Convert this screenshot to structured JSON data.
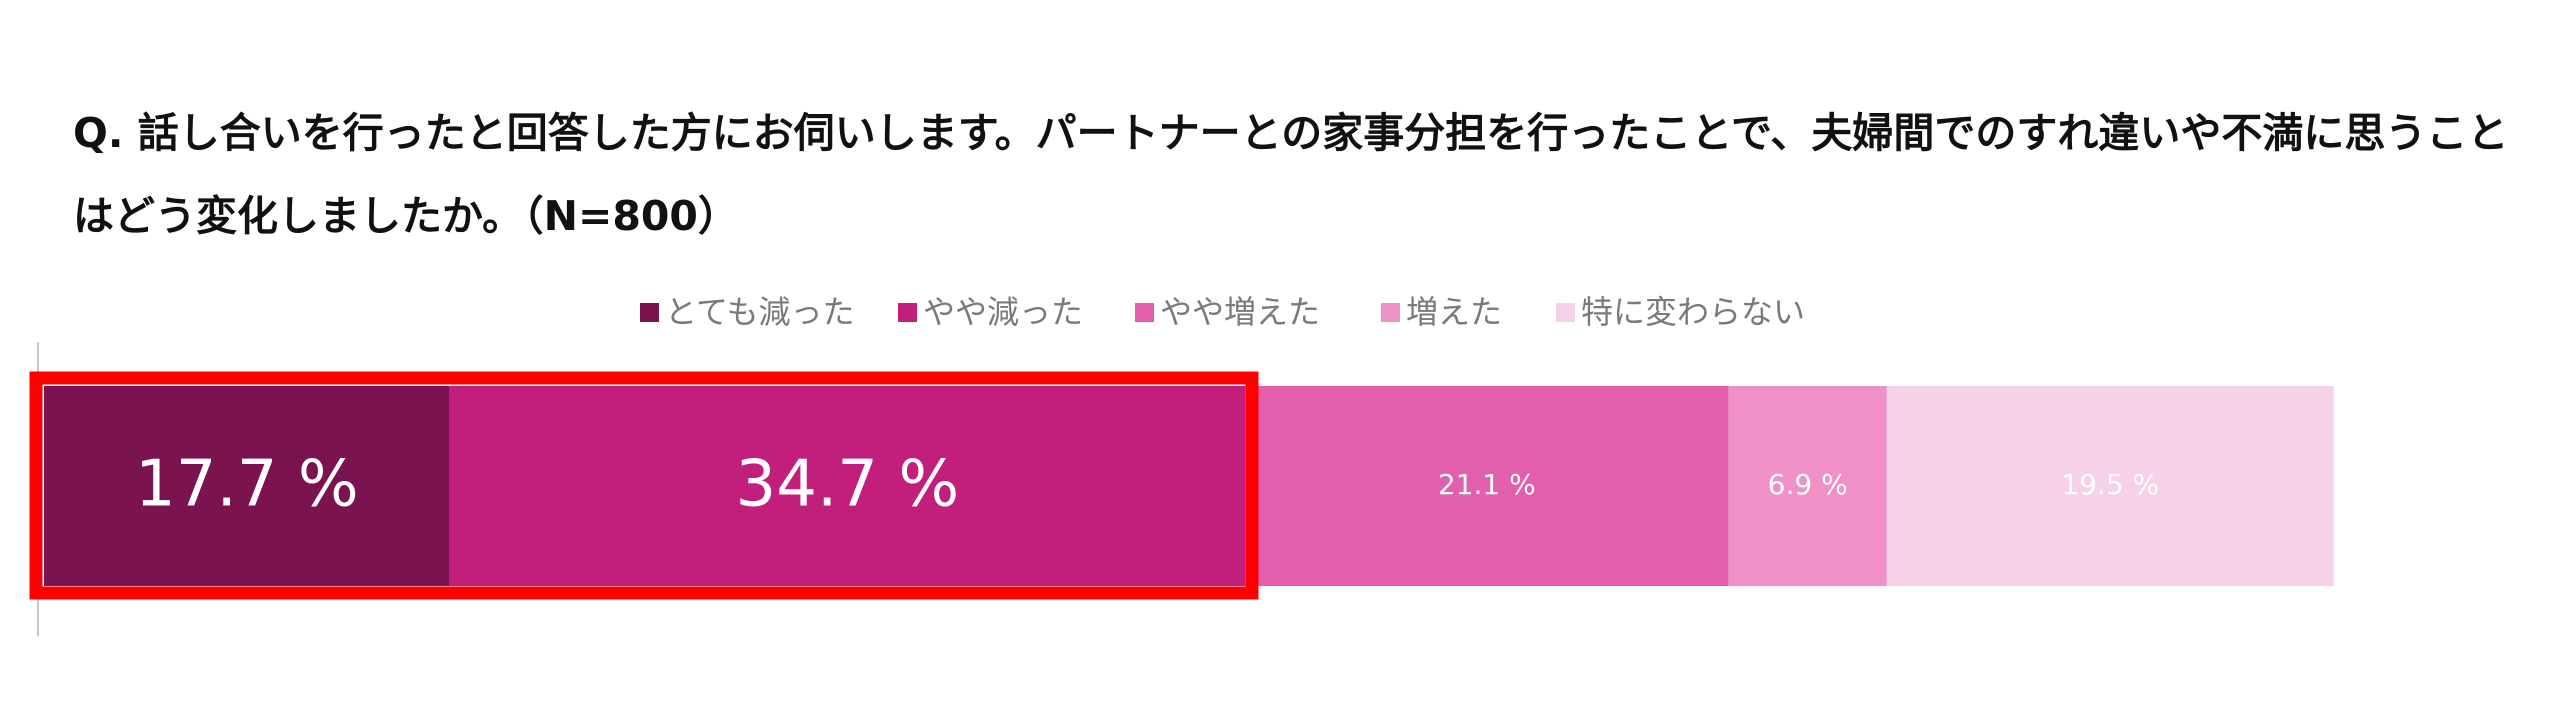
{
  "chart_data": {
    "type": "bar",
    "orientation": "horizontal",
    "stacked": true,
    "title": "Q.  話し合いを行ったと回答した方にお伺いします。パートナーとの家事分担を行ったことで、夫婦間でのすれ違いや不満に思うことはどう変化しましたか。（N=800）",
    "xlim": [
      0,
      100
    ],
    "legend": "top",
    "series": [
      {
        "name": "とても減った",
        "color": "#7b1350",
        "values": [
          17.7
        ],
        "value_labels": [
          "17.7 %"
        ]
      },
      {
        "name": "やや減った",
        "color": "#c21f7c",
        "values": [
          34.7
        ],
        "value_labels": [
          "34.7 %"
        ]
      },
      {
        "name": "やや増えた",
        "color": "#e25fad",
        "values": [
          21.1
        ],
        "value_labels": [
          "21.1 %"
        ]
      },
      {
        "name": "増えた",
        "color": "#ef90c7",
        "values": [
          6.9
        ],
        "value_labels": [
          "6.9 %"
        ]
      },
      {
        "name": "特に変わらない",
        "color": "#f7d1e7",
        "values": [
          19.5
        ],
        "value_labels": [
          "19.5 %"
        ]
      }
    ]
  }
}
